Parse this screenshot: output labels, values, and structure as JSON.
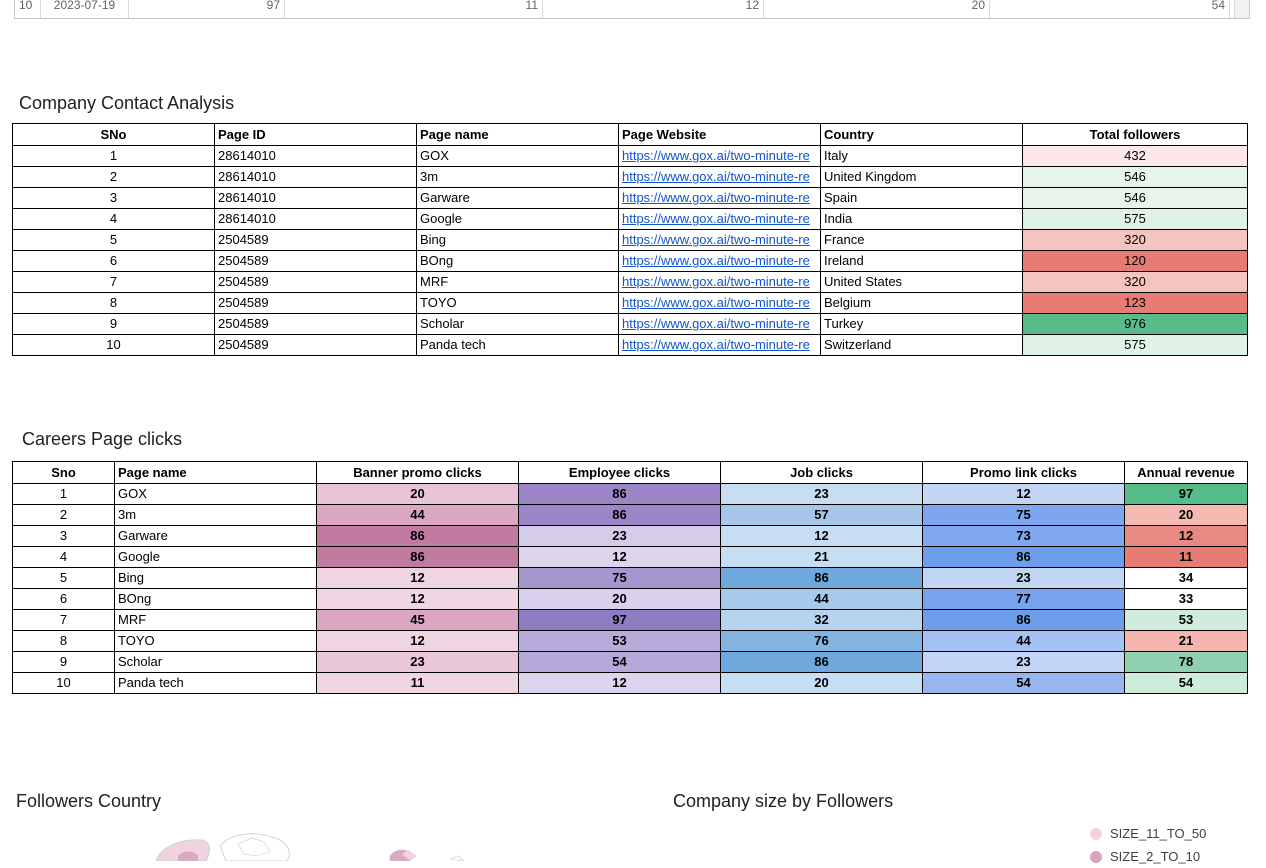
{
  "top_row": {
    "sno": "10",
    "date": "2023-07-19",
    "values": [
      "97",
      "11",
      "12",
      "20",
      "54"
    ]
  },
  "contact_section": {
    "title": "Company Contact Analysis",
    "headers": [
      "SNo",
      "Page ID",
      "Page name",
      "Page Website",
      "Country",
      "Total followers"
    ],
    "rows": [
      {
        "sno": "1",
        "page_id": "28614010",
        "name": "GOX",
        "website": "https://www.gox.ai/two-minute-re",
        "country": "Italy",
        "followers": "432",
        "color": "#fce8e6"
      },
      {
        "sno": "2",
        "page_id": "28614010",
        "name": "3m",
        "website": "https://www.gox.ai/two-minute-re",
        "country": "United Kingdom",
        "followers": "546",
        "color": "#e6f4ea"
      },
      {
        "sno": "3",
        "page_id": "28614010",
        "name": "Garware",
        "website": "https://www.gox.ai/two-minute-re",
        "country": "Spain",
        "followers": "546",
        "color": "#e6f4ea"
      },
      {
        "sno": "4",
        "page_id": "28614010",
        "name": "Google",
        "website": "https://www.gox.ai/two-minute-re",
        "country": "India",
        "followers": "575",
        "color": "#e0f2e6"
      },
      {
        "sno": "5",
        "page_id": "2504589",
        "name": "Bing",
        "website": "https://www.gox.ai/two-minute-re",
        "country": "France",
        "followers": "320",
        "color": "#f6c4be"
      },
      {
        "sno": "6",
        "page_id": "2504589",
        "name": "BOng",
        "website": "https://www.gox.ai/two-minute-re",
        "country": "Ireland",
        "followers": "120",
        "color": "#e67c73"
      },
      {
        "sno": "7",
        "page_id": "2504589",
        "name": "MRF",
        "website": "https://www.gox.ai/two-minute-re",
        "country": "United States",
        "followers": "320",
        "color": "#f6c4be"
      },
      {
        "sno": "8",
        "page_id": "2504589",
        "name": "TOYO",
        "website": "https://www.gox.ai/two-minute-re",
        "country": "Belgium",
        "followers": "123",
        "color": "#e67c73"
      },
      {
        "sno": "9",
        "page_id": "2504589",
        "name": "Scholar",
        "website": "https://www.gox.ai/two-minute-re",
        "country": "Turkey",
        "followers": "976",
        "color": "#57bb8a"
      },
      {
        "sno": "10",
        "page_id": "2504589",
        "name": "Panda tech",
        "website": "https://www.gox.ai/two-minute-re",
        "country": "Switzerland",
        "followers": "575",
        "color": "#e0f2e6"
      }
    ]
  },
  "careers_section": {
    "title": "Careers Page clicks",
    "headers": [
      "Sno",
      "Page name",
      "Banner promo clicks",
      "Employee clicks",
      "Job clicks",
      "Promo link clicks",
      "Annual revenue"
    ],
    "rows": [
      {
        "sno": "1",
        "name": "GOX",
        "values": [
          "20",
          "86",
          "23",
          "12",
          "97"
        ],
        "colors": [
          "#e8c4d6",
          "#9b87c8",
          "#c6ddf2",
          "#c3d5f4",
          "#57bb8a"
        ]
      },
      {
        "sno": "2",
        "name": "3m",
        "values": [
          "44",
          "86",
          "57",
          "75",
          "20"
        ],
        "colors": [
          "#dba8c2",
          "#9b87c8",
          "#a6c7ea",
          "#7da6ee",
          "#f4b9b2"
        ]
      },
      {
        "sno": "3",
        "name": "Garware",
        "values": [
          "86",
          "23",
          "12",
          "73",
          "12"
        ],
        "colors": [
          "#c27ba0",
          "#d6cce9",
          "#c6ddf2",
          "#80a8ee",
          "#e98a82"
        ]
      },
      {
        "sno": "4",
        "name": "Google",
        "values": [
          "86",
          "12",
          "21",
          "86",
          "11"
        ],
        "colors": [
          "#c27ba0",
          "#ddd5ed",
          "#c6ddf2",
          "#6d9eeb",
          "#e67c73"
        ]
      },
      {
        "sno": "5",
        "name": "Bing",
        "values": [
          "12",
          "75",
          "86",
          "23",
          "34"
        ],
        "colors": [
          "#efd4e1",
          "#a596cf",
          "#6fa8dc",
          "#c3d5f4",
          "#ffffff"
        ]
      },
      {
        "sno": "6",
        "name": "BOng",
        "values": [
          "12",
          "20",
          "44",
          "77",
          "33"
        ],
        "colors": [
          "#efd4e1",
          "#d9d0eb",
          "#a9c9eb",
          "#78a3ed",
          "#ffffff"
        ]
      },
      {
        "sno": "7",
        "name": "MRF",
        "values": [
          "45",
          "97",
          "32",
          "86",
          "53"
        ],
        "colors": [
          "#daa6c1",
          "#8e7cc3",
          "#b7d3ee",
          "#6d9eeb",
          "#d1ecdb"
        ]
      },
      {
        "sno": "8",
        "name": "TOYO",
        "values": [
          "12",
          "53",
          "76",
          "44",
          "21"
        ],
        "colors": [
          "#efd4e1",
          "#b8acdb",
          "#83b4e0",
          "#a5c0f2",
          "#f4b5ae"
        ]
      },
      {
        "sno": "9",
        "name": "Scholar",
        "values": [
          "23",
          "54",
          "86",
          "23",
          "78"
        ],
        "colors": [
          "#e9c7d8",
          "#b6a9da",
          "#6fa8dc",
          "#c3d5f4",
          "#8fd1ae"
        ]
      },
      {
        "sno": "10",
        "name": "Panda tech",
        "values": [
          "11",
          "12",
          "20",
          "54",
          "54"
        ],
        "colors": [
          "#f0d6e2",
          "#ddd5ed",
          "#c8def3",
          "#98b7f0",
          "#cfebd9"
        ]
      }
    ]
  },
  "followers_country": {
    "title": "Followers Country"
  },
  "company_size": {
    "title": "Company size by Followers",
    "legend": [
      {
        "label": "SIZE_11_TO_50",
        "color": "#f1d3df"
      },
      {
        "label": "SIZE_2_TO_10",
        "color": "#d8a4bf"
      }
    ]
  }
}
